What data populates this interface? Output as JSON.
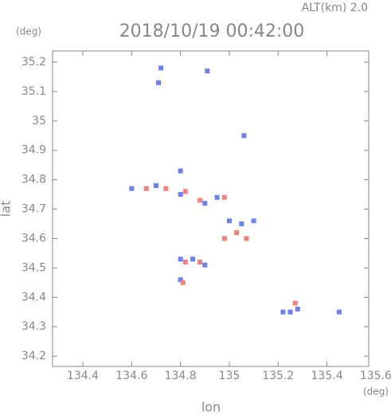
{
  "chart_data": {
    "type": "scatter",
    "title": "2018/10/19 00:42:00",
    "subtitle": "ALT(km) 2.0",
    "y_unit": "(deg)",
    "x_unit": "(deg)",
    "xlabel": "lon",
    "ylabel": "lat",
    "xlim": [
      134.276,
      135.571
    ],
    "ylim": [
      34.165,
      35.238
    ],
    "xticks": [
      134.4,
      134.6,
      134.8,
      135.0,
      135.2,
      135.4,
      135.6
    ],
    "yticks": [
      34.2,
      34.3,
      34.4,
      34.5,
      34.6,
      34.7,
      34.8,
      34.9,
      35.0,
      35.1,
      35.2
    ],
    "series": [
      {
        "color": "#6f7ff0",
        "x": [
          134.72,
          134.71,
          134.91,
          135.06,
          134.8,
          134.6,
          134.7,
          134.8,
          134.9,
          134.95,
          135.0,
          135.05,
          134.85,
          134.9,
          134.8,
          135.22,
          135.25,
          135.28,
          135.45,
          135.1,
          134.8
        ],
        "values": [
          35.18,
          35.13,
          35.17,
          34.95,
          34.83,
          34.77,
          34.78,
          34.75,
          34.72,
          34.74,
          34.66,
          34.65,
          34.53,
          34.51,
          34.46,
          34.35,
          34.35,
          34.36,
          34.35,
          34.66,
          34.53
        ]
      },
      {
        "color": "#f07f7f",
        "x": [
          134.66,
          134.74,
          134.82,
          134.88,
          134.98,
          135.03,
          135.07,
          134.88,
          134.82,
          134.98,
          135.27,
          134.81
        ],
        "values": [
          34.77,
          34.77,
          34.76,
          34.73,
          34.74,
          34.62,
          34.6,
          34.52,
          34.52,
          34.6,
          34.38,
          34.45
        ]
      }
    ]
  }
}
